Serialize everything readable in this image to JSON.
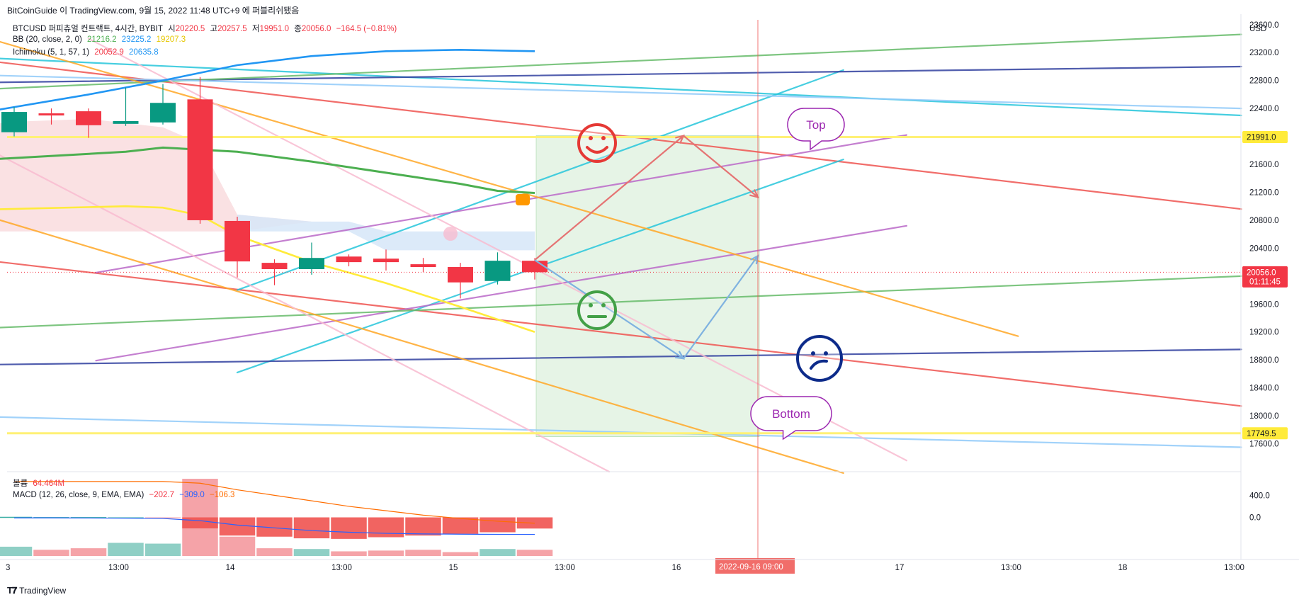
{
  "header": {
    "author": "BitCoinGuide",
    "published": "이 TradingView.com, 9월 15, 2022 11:48 UTC+9 에 퍼블리쉬됐음"
  },
  "legend": {
    "symbol": "BTCUSD 퍼피츄얼 컨트랙트, 4시간, BYBIT",
    "open_label": "시",
    "open": "20220.5",
    "high_label": "고",
    "high": "20257.5",
    "low_label": "저",
    "low": "19951.0",
    "close_label": "종",
    "close": "20056.0",
    "change": "−164.5 (−0.81%)",
    "bb_label": "BB (20, close, 2, 0)",
    "bb_basis": "21216.2",
    "bb_upper": "23225.2",
    "bb_lower": "19207.3",
    "ichimoku_label": "Ichimoku (5, 1, 57, 1)",
    "ichimoku_v1": "20052.9",
    "ichimoku_v2": "20635.8",
    "volume_label": "볼륨",
    "volume_value": "64.464M",
    "macd_label": "MACD (12, 26, close, 9, EMA, EMA)",
    "macd_hist": "−202.7",
    "macd_macd": "−309.0",
    "macd_signal": "−106.3"
  },
  "footer": {
    "brand": "TradingView"
  },
  "annotations": {
    "top": "Top",
    "bottom": "Bottom"
  },
  "colors": {
    "up": "#089981",
    "down": "#f23645",
    "bb_basis": "#4caf50",
    "bb_upper": "#2196f3",
    "bb_lower": "#ffeb3b",
    "yellow_line": "#fff176",
    "orange_line": "#ffa726",
    "red_line": "#ef5350",
    "cyan_line": "#26c6da",
    "purple_line": "#ba68c8",
    "navy_line": "#303f9f",
    "green_line": "#66bb6a",
    "lightblue_line": "#90caf9",
    "pink_line": "#f8bbd0",
    "price_tag": "#f23645",
    "level_tag": "#ffeb3b"
  },
  "chart_data": {
    "type": "candlestick",
    "symbol": "BTCUSD",
    "timeframe": "4h",
    "y_axis_unit": "USD",
    "ylim": [
      17200,
      23750
    ],
    "y_ticks": [
      17600,
      18000,
      18400,
      18800,
      19200,
      19600,
      20000,
      20400,
      20800,
      21200,
      21600,
      22000,
      22400,
      22800,
      23200,
      23600
    ],
    "y_tick_labels": [
      "17600.0",
      "18000.0",
      "18400.0",
      "18800.0",
      "19200.0",
      "19600.0",
      "",
      "20400.0",
      "20800.0",
      "21200.0",
      "21600.0",
      "",
      "22400.0",
      "22800.0",
      "23200.0",
      "23600.0"
    ],
    "x_tick_labels": [
      "3",
      "13:00",
      "14",
      "13:00",
      "15",
      "13:00",
      "16",
      "2022-09-16   09:00",
      "17",
      "13:00",
      "18",
      "13:00"
    ],
    "x_tick_bars": [
      0,
      3,
      6,
      9,
      12,
      15,
      18,
      21,
      24,
      27,
      30,
      33
    ],
    "crosshair_bar": 20,
    "candles": [
      {
        "o": 22060,
        "h": 22420,
        "l": 22000,
        "c": 22350
      },
      {
        "o": 22330,
        "h": 22400,
        "l": 22170,
        "c": 22300
      },
      {
        "o": 22360,
        "h": 22400,
        "l": 21980,
        "c": 22160
      },
      {
        "o": 22180,
        "h": 22700,
        "l": 22150,
        "c": 22220
      },
      {
        "o": 22200,
        "h": 22750,
        "l": 22170,
        "c": 22480
      },
      {
        "o": 22530,
        "h": 22850,
        "l": 20750,
        "c": 20800
      },
      {
        "o": 20790,
        "h": 20850,
        "l": 19980,
        "c": 20210
      },
      {
        "o": 20190,
        "h": 20240,
        "l": 19870,
        "c": 20100
      },
      {
        "o": 20100,
        "h": 20480,
        "l": 20020,
        "c": 20260
      },
      {
        "o": 20280,
        "h": 20310,
        "l": 20140,
        "c": 20200
      },
      {
        "o": 20250,
        "h": 20380,
        "l": 20080,
        "c": 20200
      },
      {
        "o": 20170,
        "h": 20260,
        "l": 20060,
        "c": 20130
      },
      {
        "o": 20130,
        "h": 20190,
        "l": 19680,
        "c": 19910
      },
      {
        "o": 19930,
        "h": 20340,
        "l": 19880,
        "c": 20220
      },
      {
        "o": 20220,
        "h": 20257,
        "l": 19951,
        "c": 20056
      }
    ],
    "price_labels": [
      {
        "value": 21991,
        "label": "21991.0",
        "color": "#ffeb3b"
      },
      {
        "value": 20056,
        "label": "20056.0",
        "sub": "01:11:45",
        "color": "#f23645"
      },
      {
        "value": 17749.5,
        "label": "17749.5",
        "color": "#ffeb3b"
      }
    ],
    "horizontal_levels": [
      21991,
      17749.5
    ],
    "drawn_lines": [
      {
        "color": "#ef5350",
        "p1": [
          -1,
          23100
        ],
        "p2": [
          33,
          20960
        ]
      },
      {
        "color": "#ef5350",
        "p1": [
          -1,
          20240
        ],
        "p2": [
          33,
          18140
        ]
      },
      {
        "color": "#26c6da",
        "p1": [
          -1,
          23130
        ],
        "p2": [
          33,
          22300
        ]
      },
      {
        "color": "#26c6da",
        "p1": [
          6,
          19800
        ],
        "p2": [
          22.3,
          22950
        ]
      },
      {
        "color": "#26c6da",
        "p1": [
          6,
          18620
        ],
        "p2": [
          22.3,
          21670
        ]
      },
      {
        "color": "#ba68c8",
        "p1": [
          2.2,
          18790
        ],
        "p2": [
          24,
          20720
        ]
      },
      {
        "color": "#ba68c8",
        "p1": [
          2.2,
          20050
        ],
        "p2": [
          24,
          22020
        ]
      },
      {
        "color": "#303f9f",
        "p1": [
          -1,
          22770
        ],
        "p2": [
          33,
          23000
        ]
      },
      {
        "color": "#303f9f",
        "p1": [
          -1,
          18730
        ],
        "p2": [
          33,
          18950
        ]
      },
      {
        "color": "#66bb6a",
        "p1": [
          -1,
          22670
        ],
        "p2": [
          33,
          23460
        ]
      },
      {
        "color": "#66bb6a",
        "p1": [
          -1,
          19250
        ],
        "p2": [
          33,
          20000
        ]
      },
      {
        "color": "#90caf9",
        "p1": [
          -1,
          22880
        ],
        "p2": [
          33,
          22400
        ]
      },
      {
        "color": "#90caf9",
        "p1": [
          -1,
          17990
        ],
        "p2": [
          33,
          17550
        ]
      },
      {
        "color": "#ffa726",
        "p1": [
          -1,
          23450
        ],
        "p2": [
          27,
          19140
        ]
      },
      {
        "color": "#ffa726",
        "p1": [
          -1,
          20900
        ],
        "p2": [
          22.3,
          17180
        ]
      },
      {
        "color": "#f8bbd0",
        "p1": [
          2,
          23400
        ],
        "p2": [
          24,
          17360
        ]
      },
      {
        "color": "#f8bbd0",
        "p1": [
          -1,
          21900
        ],
        "p2": [
          16,
          17200
        ]
      }
    ],
    "bollinger": {
      "upper": [
        [
          -1,
          22330
        ],
        [
          2,
          22600
        ],
        [
          4,
          22800
        ],
        [
          6,
          23020
        ],
        [
          8,
          23150
        ],
        [
          10,
          23220
        ],
        [
          12,
          23240
        ],
        [
          14,
          23220
        ]
      ],
      "basis": [
        [
          -1,
          21660
        ],
        [
          3,
          21780
        ],
        [
          4,
          21840
        ],
        [
          6,
          21780
        ],
        [
          8,
          21640
        ],
        [
          10,
          21480
        ],
        [
          12,
          21320
        ],
        [
          13,
          21220
        ],
        [
          14,
          21190
        ]
      ],
      "lower": [
        [
          -1,
          20950
        ],
        [
          3,
          21000
        ],
        [
          4,
          20980
        ],
        [
          5,
          20870
        ],
        [
          6,
          20580
        ],
        [
          8,
          20200
        ],
        [
          10,
          19900
        ],
        [
          12,
          19560
        ],
        [
          14,
          19200
        ]
      ]
    },
    "ichimoku_cloud": {
      "top": [
        [
          -1,
          22150
        ],
        [
          0,
          22210
        ],
        [
          2,
          22250
        ],
        [
          4,
          22130
        ],
        [
          5,
          21900
        ],
        [
          6,
          20880
        ],
        [
          8,
          20780
        ],
        [
          9,
          20780
        ],
        [
          10,
          20640
        ],
        [
          14,
          20640
        ]
      ],
      "bottom": [
        [
          -1,
          20640
        ],
        [
          9,
          20640
        ],
        [
          10,
          20370
        ],
        [
          14,
          20370
        ]
      ],
      "colors": [
        "#f8d7da",
        "#d6e6f8"
      ]
    },
    "trade_box": {
      "bar_start": 14,
      "bar_end": 20,
      "price_top": 22010,
      "price_bottom": 17700
    },
    "path_up": [
      [
        14,
        20230
      ],
      [
        18,
        22010
      ],
      [
        20,
        21130
      ]
    ],
    "path_down": [
      [
        14,
        20230
      ],
      [
        18,
        18820
      ],
      [
        20,
        20290
      ]
    ],
    "volume": {
      "label": "볼륨",
      "value": "64.464M",
      "values": [
        12,
        8,
        10,
        17,
        16,
        100,
        25,
        10,
        9,
        6,
        7,
        8,
        5,
        9,
        8
      ],
      "directions": [
        "up",
        "down",
        "down",
        "up",
        "up",
        "down",
        "down",
        "down",
        "up",
        "down",
        "down",
        "down",
        "down",
        "up",
        "down"
      ]
    },
    "macd": {
      "label": "MACD (12, 26, close, 9, EMA, EMA)",
      "y_ticks": [
        400,
        0
      ],
      "y_tick_labels": [
        "400.0",
        "0.0"
      ],
      "ylim": [
        -700,
        700
      ],
      "histogram": [
        10,
        5,
        5,
        0,
        -5,
        -200,
        -330,
        -350,
        -380,
        -390,
        -360,
        -330,
        -300,
        -270,
        -202.7
      ],
      "macd_line": [
        -10,
        -10,
        -12,
        -15,
        -20,
        -60,
        -140,
        -190,
        -240,
        -270,
        -290,
        -300,
        -305,
        -308,
        -309
      ],
      "signal_line": [
        740,
        740,
        730,
        720,
        700,
        620,
        500,
        400,
        300,
        200,
        120,
        40,
        -20,
        -70,
        -106.3
      ]
    }
  }
}
